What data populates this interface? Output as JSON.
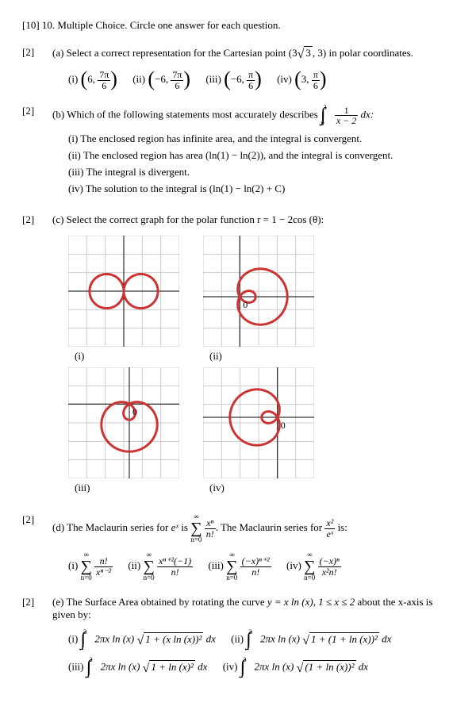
{
  "header": "[10] 10. Multiple Choice. Circle one answer for each question.",
  "parts": {
    "a": {
      "points": "[2]",
      "prompt_prefix": "(a) Select a correct representation for the Cartesian point (3",
      "prompt_sqrt": "3",
      "prompt_suffix": ", 3) in polar coordinates.",
      "options": {
        "i_label": "(i)",
        "i_r": "6",
        "i_num": "7π",
        "i_den": "6",
        "ii_label": "(ii)",
        "ii_r": "−6",
        "ii_num": "7π",
        "ii_den": "6",
        "iii_label": "(iii)",
        "iii_r": "−6",
        "iii_num": "π",
        "iii_den": "6",
        "iv_label": "(iv)",
        "iv_r": "3",
        "iv_num": "π",
        "iv_den": "6"
      }
    },
    "b": {
      "points": "[2]",
      "prompt": "(b) Which of the following statements most accurately describes",
      "integral_lower": "0",
      "integral_upper": "3",
      "integrand_num": "1",
      "integrand_den": "x − 2",
      "integral_dx": "dx:",
      "sub": {
        "i": "(i) The enclosed region has infinite area, and the integral is convergent.",
        "ii": "(ii) The enclosed region has area (ln(1) − ln(2)), and the integral is convergent.",
        "iii": "(iii) The integral is divergent.",
        "iv": "(iv) The solution to the integral is (ln(1) − ln(2) + C)"
      }
    },
    "c": {
      "points": "[2]",
      "prompt": "(c) Select the correct graph for the polar function r = 1 − 2cos (θ):",
      "labels": {
        "i": "(i)",
        "ii": "(ii)",
        "iii": "(iii)",
        "iv": "(iv)"
      },
      "graph": {
        "size": 140,
        "stroke": "#cc3333",
        "stroke_width": 3,
        "grid_color": "#cccccc",
        "axis_color": "#000000",
        "zero_label": "0"
      }
    },
    "d": {
      "points": "[2]",
      "prompt_a": "(d)  The Maclaurin series for ",
      "prompt_ex": "eˣ",
      "prompt_b": " is ",
      "series_num": "xⁿ",
      "series_den": "n!",
      "prompt_c": ". The Maclaurin series for ",
      "rhs_num": "x²",
      "rhs_den": "eˣ",
      "prompt_d": " is:",
      "sigma_top": "∞",
      "sigma_bot": "n=0",
      "options": {
        "i_label": "(i)",
        "i_num": "n!",
        "i_den": "xⁿ⁻²",
        "ii_label": "(ii)",
        "ii_num": "xⁿ⁺²(−1)",
        "ii_den": "n!",
        "iii_label": "(iii)",
        "iii_num": "(−x)ⁿ⁺²",
        "iii_den": "n!",
        "iv_label": "(iv)",
        "iv_num": "(−x)ⁿ",
        "iv_den": "x²n!"
      }
    },
    "e": {
      "points": "[2]",
      "prompt_a": "(e)  The Surface Area obtained by rotating the curve ",
      "curve": "y = x ln (x), 1 ≤ x ≤ 2",
      "prompt_b": " about the x-axis is given by:",
      "int_lower": "1",
      "int_upper": "2",
      "options": {
        "i_label": "(i)",
        "i_outer": "2πx ln (x)",
        "i_rad": "1 + (x ln (x))²",
        "i_dx": "dx",
        "ii_label": "(ii)",
        "ii_outer": "2πx ln (x)",
        "ii_rad": "1 + (1 + ln (x))²",
        "ii_dx": "dx",
        "iii_label": "(iii)",
        "iii_outer": "2πx ln (x)",
        "iii_rad": "1 + ln (x)²",
        "iii_dx": "dx",
        "iv_label": "(iv)",
        "iv_outer": "2πx ln (x)",
        "iv_rad": "(1 + ln (x))²",
        "iv_dx": "dx"
      }
    }
  }
}
